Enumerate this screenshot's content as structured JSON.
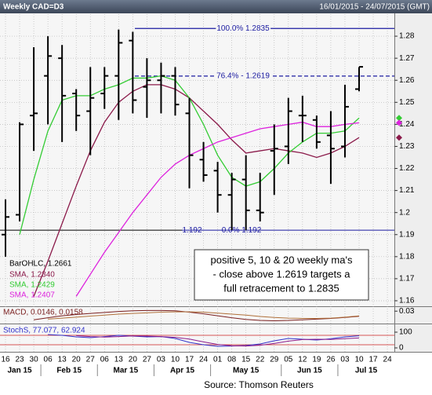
{
  "chart_data": {
    "type": "ohlc",
    "title": "Weekly CAD=D3",
    "date_range": "16/01/2015 - 24/07/2015 (GMT)",
    "categories": [
      "16",
      "23",
      "30",
      "06",
      "13",
      "20",
      "27",
      "06",
      "13",
      "20",
      "27",
      "03",
      "10",
      "17",
      "24",
      "01",
      "08",
      "15",
      "22",
      "29",
      "05",
      "12",
      "19",
      "26",
      "03",
      "10",
      "17",
      "24"
    ],
    "months": [
      "Jan 15",
      "Feb 15",
      "Mar 15",
      "Apr 15",
      "May 15",
      "Jun 15",
      "Jul 15"
    ],
    "ohlc": {
      "name": "BarOHLC",
      "legend": "BarOHLC, 1.2661",
      "color": "#000000",
      "open": [
        1.19,
        1.199,
        1.244,
        1.262,
        1.27,
        1.254,
        1.246,
        1.254,
        1.262,
        1.278,
        1.257,
        1.26,
        1.262,
        1.245,
        1.224,
        1.219,
        1.208,
        1.215,
        1.201,
        1.228,
        1.23,
        1.244,
        1.242,
        1.235,
        1.23,
        1.256,
        null,
        null
      ],
      "high": [
        1.206,
        1.241,
        1.275,
        1.28,
        1.276,
        1.256,
        1.266,
        1.266,
        1.283,
        1.282,
        1.27,
        1.268,
        1.266,
        1.252,
        1.232,
        1.223,
        1.218,
        1.226,
        1.218,
        1.24,
        1.252,
        1.253,
        1.244,
        1.246,
        1.258,
        1.266,
        null,
        null
      ],
      "low": [
        1.18,
        1.196,
        1.228,
        1.24,
        1.232,
        1.237,
        1.226,
        1.247,
        1.242,
        1.245,
        1.243,
        1.245,
        1.244,
        1.211,
        1.214,
        1.2,
        1.192,
        1.192,
        1.196,
        1.208,
        1.222,
        1.232,
        1.229,
        1.213,
        1.225,
        1.255,
        null,
        null
      ],
      "close": [
        1.198,
        1.24,
        1.245,
        1.271,
        1.253,
        1.244,
        1.252,
        1.262,
        1.277,
        1.251,
        1.26,
        1.262,
        1.249,
        1.226,
        1.217,
        1.208,
        1.215,
        1.201,
        1.2,
        1.229,
        1.246,
        1.244,
        1.232,
        1.229,
        1.248,
        1.2661,
        null,
        null
      ]
    },
    "series": [
      {
        "name": "SMA",
        "legend": "SMA, 1.2340",
        "color": "#8b1a4a",
        "values": [
          null,
          null,
          1.162,
          1.178,
          1.195,
          1.212,
          1.228,
          1.241,
          1.25,
          1.255,
          1.258,
          1.258,
          1.256,
          1.252,
          1.246,
          1.24,
          1.233,
          1.227,
          1.228,
          1.229,
          1.228,
          1.227,
          1.225,
          1.227,
          1.23,
          1.234,
          null,
          null
        ]
      },
      {
        "name": "SMA",
        "legend": "SMA, 1.2429",
        "color": "#33cc33",
        "values": [
          null,
          1.19,
          1.215,
          1.237,
          1.251,
          1.253,
          1.253,
          1.256,
          1.258,
          1.261,
          1.261,
          1.262,
          1.26,
          1.252,
          1.24,
          1.226,
          1.216,
          1.212,
          1.214,
          1.22,
          1.227,
          1.232,
          1.236,
          1.236,
          1.237,
          1.2429,
          null,
          null
        ]
      },
      {
        "name": "SMA",
        "legend": "SMA, 1.2407",
        "color": "#dd22dd",
        "values": [
          null,
          null,
          null,
          null,
          null,
          1.162,
          1.172,
          1.182,
          1.191,
          1.2,
          1.208,
          1.216,
          1.222,
          1.226,
          1.229,
          1.232,
          1.234,
          1.236,
          1.238,
          1.239,
          1.24,
          1.241,
          1.239,
          1.239,
          1.24,
          1.2407,
          null,
          null
        ]
      }
    ],
    "ylim": [
      1.1575,
      1.29
    ],
    "yticks": [
      1.16,
      1.17,
      1.18,
      1.19,
      1.2,
      1.21,
      1.22,
      1.23,
      1.24,
      1.25,
      1.26,
      1.27,
      1.28
    ],
    "grid": true,
    "levels": [
      {
        "label": "100.0% 1.2835",
        "value": 1.2835,
        "color": "#1a1aa0",
        "style": "solid"
      },
      {
        "label": "76.4% - 1.2619",
        "value": 1.2619,
        "color": "#1a1aa0",
        "style": "dashed"
      },
      {
        "label": "0.0% 1.192",
        "left_label": "1.192",
        "value": 1.192,
        "color": "#1a1aa0",
        "style": "solid"
      }
    ],
    "annotation": [
      "positive 5, 10 & 20 weekly ma's",
      "- close above 1.2619 targets a",
      "full retracement to 1.2835"
    ],
    "macd": {
      "legend": "MACD, 0.0146, 0.0158",
      "ylim": [
        -0.005,
        0.04
      ],
      "yticks": [
        0.03
      ],
      "series": [
        {
          "color": "#7a1f1f",
          "values": [
            null,
            null,
            0.004,
            0.01,
            0.016,
            0.02,
            0.023,
            0.026,
            0.029,
            0.031,
            0.032,
            0.032,
            0.031,
            0.027,
            0.022,
            0.016,
            0.01,
            0.005,
            0.002,
            0.001,
            0.002,
            0.004,
            0.006,
            0.008,
            0.011,
            0.0146,
            null,
            null
          ]
        },
        {
          "color": "#b0703a",
          "values": [
            null,
            null,
            null,
            0.006,
            0.009,
            0.012,
            0.015,
            0.018,
            0.021,
            0.023,
            0.025,
            0.027,
            0.028,
            0.028,
            0.027,
            0.024,
            0.021,
            0.018,
            0.014,
            0.011,
            0.009,
            0.008,
            0.008,
            0.009,
            0.012,
            0.0158,
            null,
            null
          ]
        }
      ]
    },
    "stoch": {
      "legend": "StochS, 77.077, 62.924",
      "ylim": [
        -20,
        150
      ],
      "yticks": [
        0,
        100
      ],
      "bands": [
        80,
        20
      ],
      "band_color": "#cc2222",
      "series": [
        {
          "color": "#3333cc",
          "values": [
            null,
            null,
            null,
            85,
            80,
            70,
            65,
            72,
            80,
            75,
            70,
            72,
            60,
            35,
            20,
            10,
            12,
            15,
            25,
            45,
            60,
            55,
            50,
            58,
            70,
            77.077,
            null,
            null
          ]
        },
        {
          "color": "#8b1a8b",
          "values": [
            null,
            null,
            null,
            null,
            null,
            78,
            72,
            69,
            72,
            76,
            75,
            72,
            67,
            56,
            38,
            22,
            14,
            12,
            17,
            28,
            43,
            53,
            55,
            54,
            59,
            62.924,
            null,
            null
          ]
        }
      ]
    },
    "source": "Source: Thomson Reuters"
  }
}
